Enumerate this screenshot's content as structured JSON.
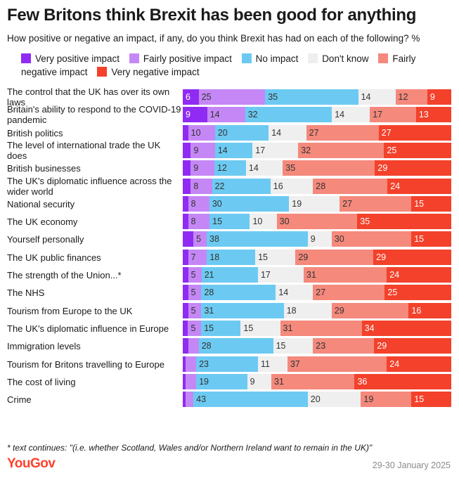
{
  "title": "Few Britons think Brexit has been good for anything",
  "subtitle": "How positive or negative an impact, if any, do you think Brexit has had on each of the following? %",
  "footnote": "* text continues: \"(i.e. whether Scotland, Wales and/or Northern Ireland want to remain in the UK)\"",
  "logo": "YouGov",
  "date": "29-30 January 2025",
  "colors": {
    "very_positive": "#8f2bf2",
    "fairly_positive": "#c587f5",
    "no_impact": "#6ccaf2",
    "dont_know": "#efefef",
    "fairly_negative": "#f4897c",
    "very_negative": "#f3412b",
    "brand": "#ff412c"
  },
  "chart_data": {
    "type": "bar",
    "orientation": "horizontal",
    "stacked": true,
    "title": "Few Britons think Brexit has been good for anything",
    "unit": "%",
    "legend_position": "top",
    "series_names": [
      "Very positive impact",
      "Fairly positive impact",
      "No impact",
      "Don't know",
      "Fairly negative impact",
      "Very negative impact"
    ],
    "categories": [
      "The control that the UK has over its own laws",
      "Britain's ability to respond to the COVID-19 pandemic",
      "British politics",
      "The level of international trade the UK does",
      "British businesses",
      "The UK's diplomatic influence across the wider world",
      "National security",
      "The UK economy",
      "Yourself personally",
      "The UK public finances",
      "The strength of the Union...*",
      "The NHS",
      "Tourism from Europe to the UK",
      "The UK's diplomatic influence in Europe",
      "Immigration levels",
      "Tourism for Britons travelling to Europe",
      "The cost of living",
      "Crime"
    ],
    "rows": [
      {
        "values": [
          6,
          25,
          35,
          14,
          12,
          9
        ],
        "labels": [
          "6",
          "25",
          "35",
          "14",
          "12",
          "9"
        ]
      },
      {
        "values": [
          9,
          14,
          32,
          14,
          17,
          13
        ],
        "labels": [
          "9",
          "14",
          "32",
          "14",
          "17",
          "13"
        ]
      },
      {
        "values": [
          2,
          10,
          20,
          14,
          27,
          27
        ],
        "labels": [
          "",
          "10",
          "20",
          "14",
          "27",
          "27"
        ]
      },
      {
        "values": [
          3,
          9,
          14,
          17,
          32,
          25
        ],
        "labels": [
          "",
          "9",
          "14",
          "17",
          "32",
          "25"
        ]
      },
      {
        "values": [
          3,
          9,
          12,
          14,
          35,
          29
        ],
        "labels": [
          "",
          "9",
          "12",
          "14",
          "35",
          "29"
        ]
      },
      {
        "values": [
          3,
          8,
          22,
          16,
          28,
          24
        ],
        "labels": [
          "",
          "8",
          "22",
          "16",
          "28",
          "24"
        ]
      },
      {
        "values": [
          2,
          8,
          30,
          19,
          27,
          15
        ],
        "labels": [
          "",
          "8",
          "30",
          "19",
          "27",
          "15"
        ]
      },
      {
        "values": [
          2,
          8,
          15,
          10,
          30,
          35
        ],
        "labels": [
          "",
          "8",
          "15",
          "10",
          "30",
          "35"
        ]
      },
      {
        "values": [
          4,
          5,
          38,
          9,
          30,
          15
        ],
        "labels": [
          "",
          "5",
          "38",
          "9",
          "30",
          "15"
        ]
      },
      {
        "values": [
          2,
          7,
          18,
          15,
          29,
          29
        ],
        "labels": [
          "",
          "7",
          "18",
          "15",
          "29",
          "29"
        ]
      },
      {
        "values": [
          2,
          5,
          21,
          17,
          31,
          24
        ],
        "labels": [
          "",
          "5",
          "21",
          "17",
          "31",
          "24"
        ]
      },
      {
        "values": [
          2,
          5,
          28,
          14,
          27,
          25
        ],
        "labels": [
          "",
          "5",
          "28",
          "14",
          "27",
          "25"
        ]
      },
      {
        "values": [
          2,
          5,
          31,
          18,
          29,
          16
        ],
        "labels": [
          "",
          "5",
          "31",
          "18",
          "29",
          "16"
        ]
      },
      {
        "values": [
          2,
          5,
          15,
          15,
          31,
          34
        ],
        "labels": [
          "",
          "5",
          "15",
          "15",
          "31",
          "34"
        ]
      },
      {
        "values": [
          2,
          4,
          28,
          15,
          23,
          29
        ],
        "labels": [
          "",
          "",
          "28",
          "15",
          "23",
          "29"
        ]
      },
      {
        "values": [
          1,
          4,
          23,
          11,
          37,
          24
        ],
        "labels": [
          "",
          "",
          "23",
          "11",
          "37",
          "24"
        ]
      },
      {
        "values": [
          1,
          4,
          19,
          9,
          31,
          36
        ],
        "labels": [
          "",
          "",
          "19",
          "9",
          "31",
          "36"
        ]
      },
      {
        "values": [
          1,
          3,
          43,
          20,
          19,
          15
        ],
        "labels": [
          "",
          "",
          "43",
          "20",
          "19",
          "15"
        ]
      }
    ],
    "row_text_colors": [
      "#ffffff",
      "#333333",
      "#333333",
      "#333333",
      "#333333",
      "#ffffff"
    ]
  }
}
